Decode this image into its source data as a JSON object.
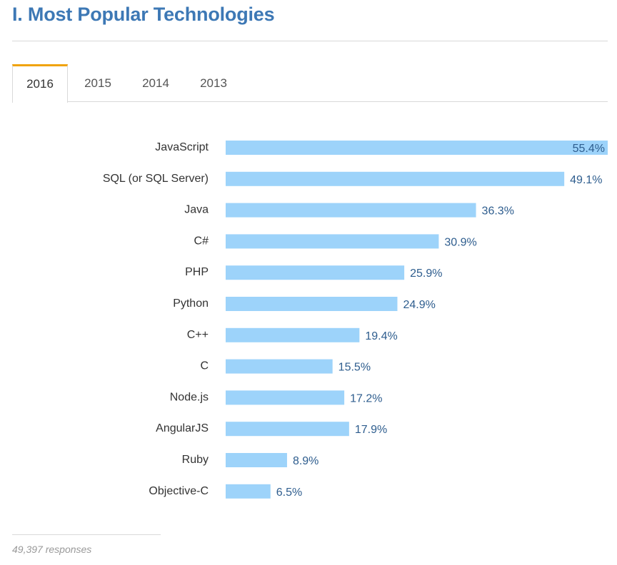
{
  "header": {
    "title": "I. Most Popular Technologies"
  },
  "tabs": [
    {
      "label": "2016",
      "active": true
    },
    {
      "label": "2015",
      "active": false
    },
    {
      "label": "2014",
      "active": false
    },
    {
      "label": "2013",
      "active": false
    }
  ],
  "colors": {
    "bar": "#9dd3fa",
    "value_text": "#2e5d8e",
    "label_text": "#333333",
    "accent": "#f0a30a",
    "title": "#3d78b5"
  },
  "chart_data": {
    "type": "bar",
    "orientation": "horizontal",
    "categories": [
      "JavaScript",
      "SQL (or SQL Server)",
      "Java",
      "C#",
      "PHP",
      "Python",
      "C++",
      "C",
      "Node.js",
      "AngularJS",
      "Ruby",
      "Objective-C"
    ],
    "values": [
      55.4,
      49.1,
      36.3,
      30.9,
      25.9,
      24.9,
      19.4,
      15.5,
      17.2,
      17.9,
      8.9,
      6.5
    ],
    "value_labels": [
      "55.4%",
      "49.1%",
      "36.3%",
      "30.9%",
      "25.9%",
      "24.9%",
      "19.4%",
      "15.5%",
      "17.2%",
      "17.9%",
      "8.9%",
      "6.5%"
    ],
    "xlim": [
      0,
      55.4
    ],
    "grid": false
  },
  "footer": {
    "responses": "49,397 responses"
  }
}
